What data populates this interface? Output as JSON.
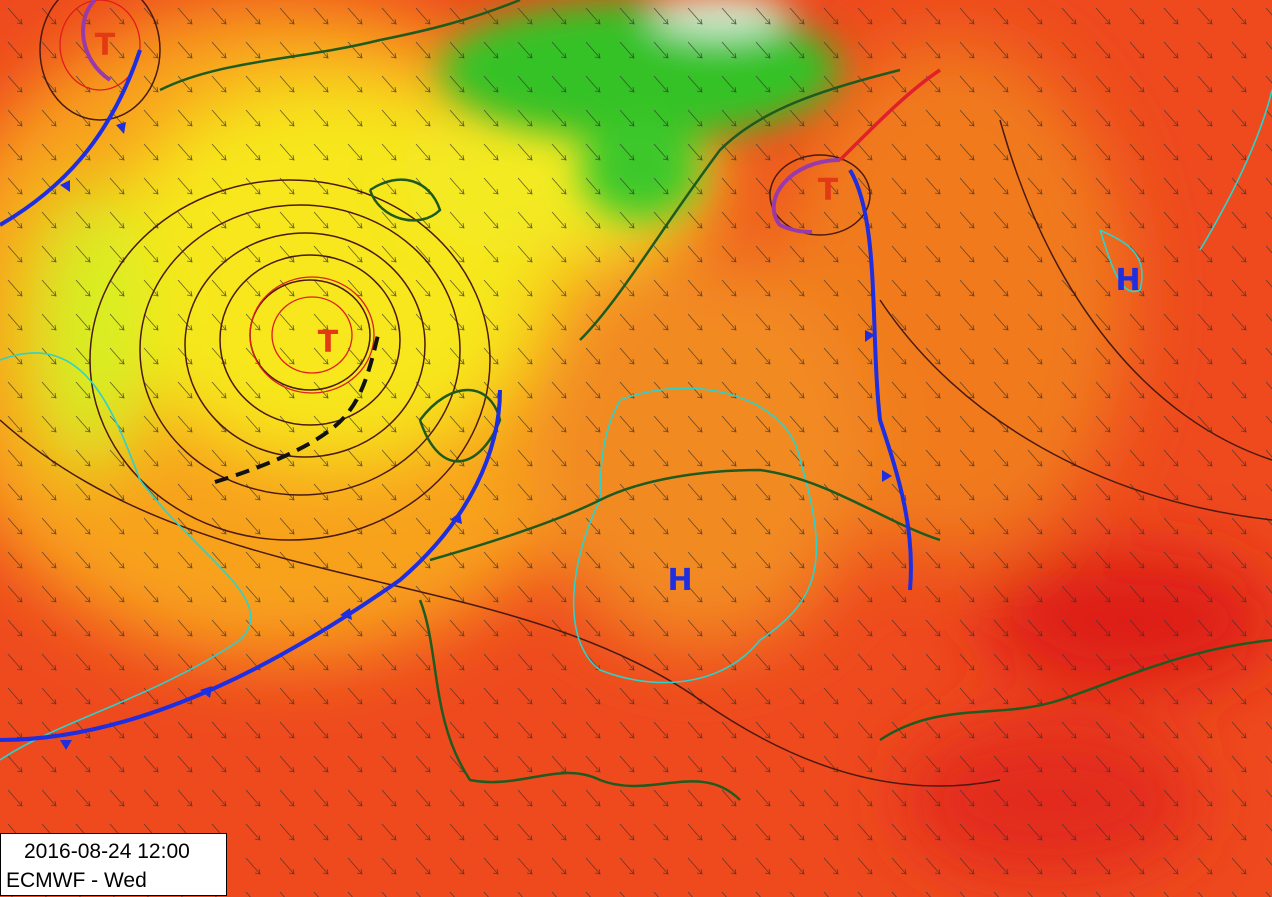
{
  "pressure_centers": [
    {
      "label": "T"
    },
    {
      "label": "T"
    },
    {
      "label": "T"
    },
    {
      "label": "H"
    },
    {
      "label": "H"
    }
  ],
  "info_box": {
    "datetime": "2016-08-24 12:00",
    "model": "ECMWF - Wed"
  }
}
